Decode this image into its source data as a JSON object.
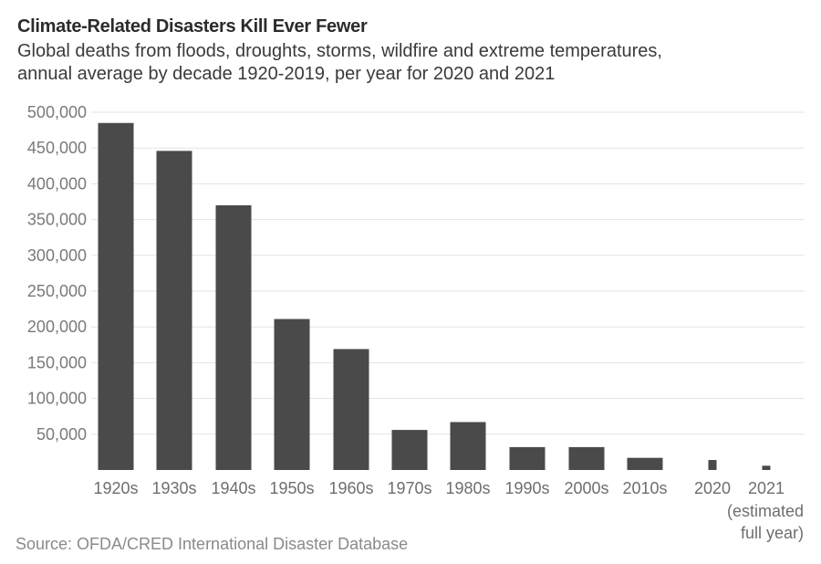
{
  "chart_data": {
    "type": "bar",
    "title": "Climate-Related Disasters Kill Ever Fewer",
    "subtitle": [
      "Global deaths from floods, droughts, storms, wildfire and extreme temperatures,",
      "annual average by decade 1920-2019, per year for 2020 and 2021"
    ],
    "categories": [
      "1920s",
      "1930s",
      "1940s",
      "1950s",
      "1960s",
      "1970s",
      "1980s",
      "1990s",
      "2000s",
      "2010s",
      "2020",
      "2021"
    ],
    "category_notes": {
      "2021": [
        "(estimated",
        "full year)"
      ]
    },
    "values": [
      485000,
      446000,
      370000,
      211000,
      169000,
      56000,
      67000,
      32000,
      32000,
      17000,
      14000,
      6000
    ],
    "ylim": [
      0,
      500000
    ],
    "yticks": [
      50000,
      100000,
      150000,
      200000,
      250000,
      300000,
      350000,
      400000,
      450000,
      500000
    ],
    "ytick_labels": [
      "50,000",
      "100,000",
      "150,000",
      "200,000",
      "250,000",
      "300,000",
      "350,000",
      "400,000",
      "450,000",
      "500,000"
    ],
    "xlabel": "",
    "ylabel": "",
    "grid": true,
    "bar_color": "#4a4a4a",
    "grid_color": "#e3e3e3"
  },
  "source": "Source: OFDA/CRED International Disaster Database"
}
